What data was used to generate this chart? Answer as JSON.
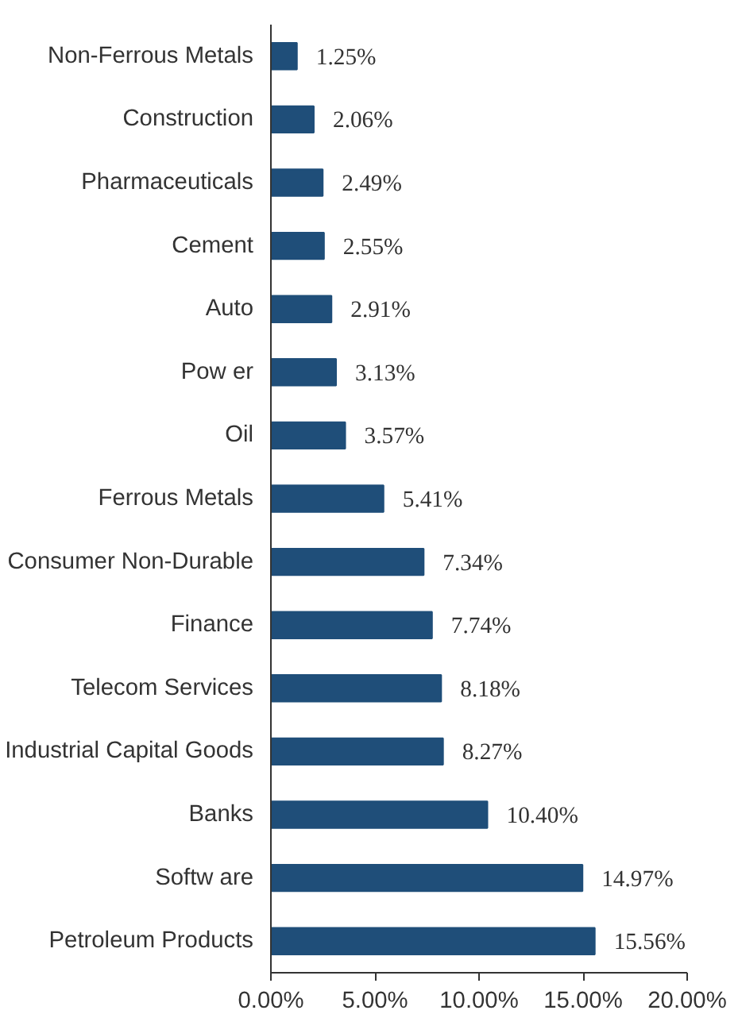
{
  "chart_data": {
    "type": "bar",
    "orientation": "horizontal",
    "categories": [
      "Non-Ferrous Metals",
      "Construction",
      "Pharmaceuticals",
      "Cement",
      "Auto",
      "Pow er",
      "Oil",
      "Ferrous Metals",
      "Consumer Non-Durable",
      "Finance",
      "Telecom Services",
      "Industrial Capital Goods",
      "Banks",
      "Softw are",
      "Petroleum Products"
    ],
    "values": [
      1.25,
      2.06,
      2.49,
      2.55,
      2.91,
      3.13,
      3.57,
      5.41,
      7.34,
      7.74,
      8.18,
      8.27,
      10.4,
      14.97,
      15.56
    ],
    "value_labels": [
      "1.25%",
      "2.06%",
      "2.49%",
      "2.55%",
      "2.91%",
      "3.13%",
      "3.57%",
      "5.41%",
      "7.34%",
      "7.74%",
      "8.18%",
      "8.27%",
      "10.40%",
      "14.97%",
      "15.56%"
    ],
    "color": "#1f4e79",
    "xlim": [
      0,
      20
    ],
    "xticks": [
      {
        "value": 0,
        "label": "0.00%"
      },
      {
        "value": 5,
        "label": "5.00%"
      },
      {
        "value": 10,
        "label": "10.00%"
      },
      {
        "value": 15,
        "label": "15.00%"
      },
      {
        "value": 20,
        "label": "20.00%"
      }
    ],
    "grid": false
  }
}
